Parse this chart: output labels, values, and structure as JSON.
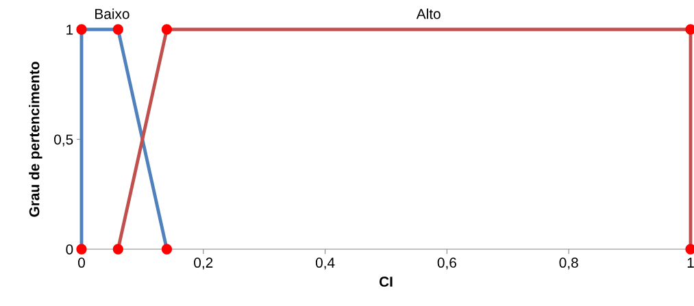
{
  "chart_data": {
    "type": "line",
    "xlabel": "CI",
    "ylabel": "Grau de pertencimento",
    "series": [
      {
        "color": "#4f81bd",
        "colors": [
          "#ff0000",
          "#ff0000",
          "#ff0000",
          "#ff0000"
        ],
        "x": [
          0,
          0,
          0.06,
          0.14
        ],
        "values": [
          0,
          1,
          1,
          0
        ]
      },
      {
        "color": "#c0504d",
        "colors": [
          "#ff0000",
          "#ff0000",
          "#ff0000",
          "#ff0000"
        ],
        "x": [
          0.06,
          0.14,
          1,
          1
        ],
        "values": [
          0,
          1,
          1,
          0
        ]
      }
    ],
    "marker": "circle",
    "xlim": [
      0,
      1
    ],
    "ylim": [
      0,
      1
    ],
    "xticks": [
      0,
      {
        "value": 0.2,
        "label": "0,2"
      },
      {
        "value": 0.4,
        "label": "0,4"
      },
      {
        "value": 0.6,
        "label": "0,6"
      },
      {
        "value": 0.8,
        "label": "0,8"
      },
      1
    ],
    "yticks": [
      0,
      {
        "value": 0.5,
        "label": "0,5"
      },
      1
    ],
    "annotations": [
      {
        "text": "Baixo",
        "x": 0.05,
        "y": 1
      },
      {
        "text": "Alto",
        "x": 0.57,
        "y": 1
      }
    ],
    "grid": false
  }
}
